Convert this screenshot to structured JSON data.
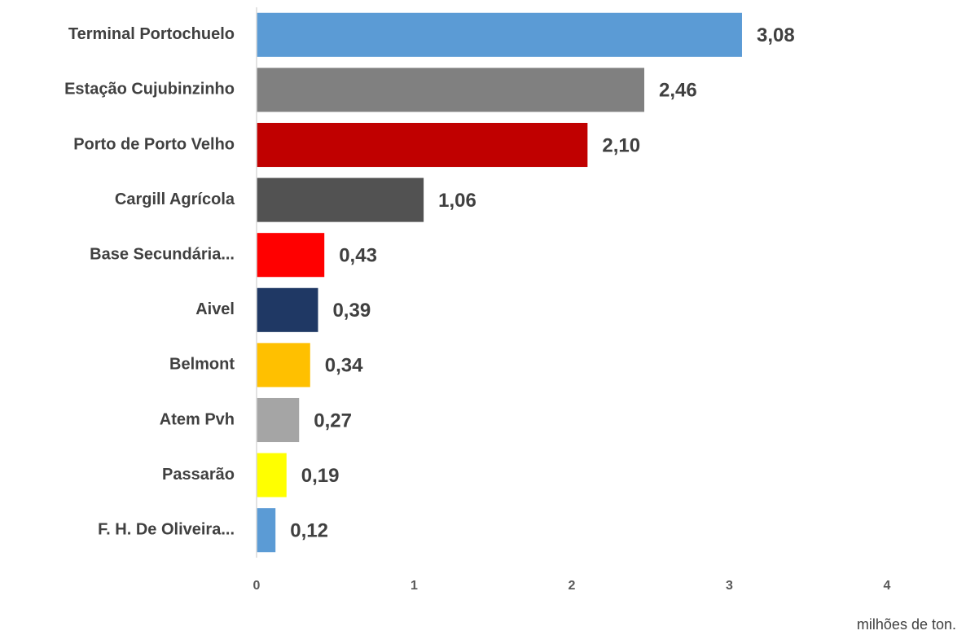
{
  "chart_data": {
    "type": "barh",
    "categories": [
      "Terminal Portochuelo",
      "Estação Cujubinzinho",
      "Porto de Porto Velho",
      "Cargill Agrícola",
      "Base Secundária...",
      "Aivel",
      "Belmont",
      "Atem Pvh",
      "Passarão",
      "F. H. De Oliveira..."
    ],
    "values": [
      3.08,
      2.46,
      2.1,
      1.06,
      0.43,
      0.39,
      0.34,
      0.27,
      0.19,
      0.12
    ],
    "value_labels": [
      "3,08",
      "2,46",
      "2,10",
      "1,06",
      "0,43",
      "0,39",
      "0,34",
      "0,27",
      "0,19",
      "0,12"
    ],
    "colors": [
      "#5b9bd5",
      "#808080",
      "#c00000",
      "#525252",
      "#ff0000",
      "#1f3864",
      "#ffc000",
      "#a5a5a5",
      "#ffff00",
      "#5b9bd5"
    ],
    "xlim": [
      0,
      4
    ],
    "xticks": [
      0,
      1,
      2,
      3,
      4
    ],
    "grid": false,
    "x_axis_label": "milhões de ton."
  }
}
